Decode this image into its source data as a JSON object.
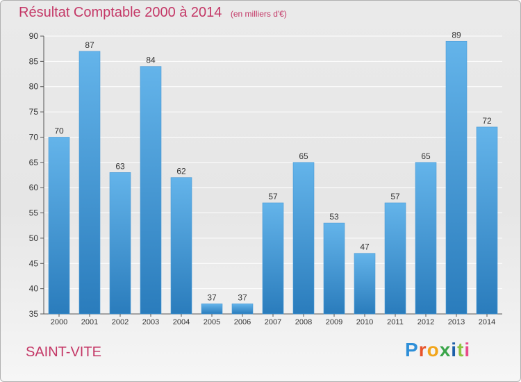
{
  "header": {
    "title": "Résultat Comptable 2000 à 2014",
    "unit": "(en milliers d'€)"
  },
  "footer": {
    "commune": "SAINT-VITE",
    "brand_letters": [
      "P",
      "r",
      "o",
      "x",
      "i",
      "t",
      "i"
    ],
    "brand_colors": [
      "#2e8fd8",
      "#e8532a",
      "#f2a51a",
      "#3aa54a",
      "#1d5fa8",
      "#8fc441",
      "#e94b8a"
    ]
  },
  "colors": {
    "bar_top": "#64b4ea",
    "bar_bottom": "#2a7cbc",
    "accent_text": "#c43766"
  },
  "chart_data": {
    "type": "bar",
    "title": "Résultat Comptable 2000 à 2014",
    "subtitle": "(en milliers d'€)",
    "categories": [
      "2000",
      "2001",
      "2002",
      "2003",
      "2004",
      "2005",
      "2006",
      "2007",
      "2008",
      "2009",
      "2010",
      "2011",
      "2012",
      "2013",
      "2014"
    ],
    "values": [
      70,
      87,
      63,
      84,
      62,
      37,
      37,
      57,
      65,
      53,
      47,
      57,
      65,
      89,
      72
    ],
    "ylim": [
      35,
      90
    ],
    "yticks": [
      35,
      40,
      45,
      50,
      55,
      60,
      65,
      70,
      75,
      80,
      85,
      90
    ],
    "grid": true,
    "data_labels": true
  }
}
